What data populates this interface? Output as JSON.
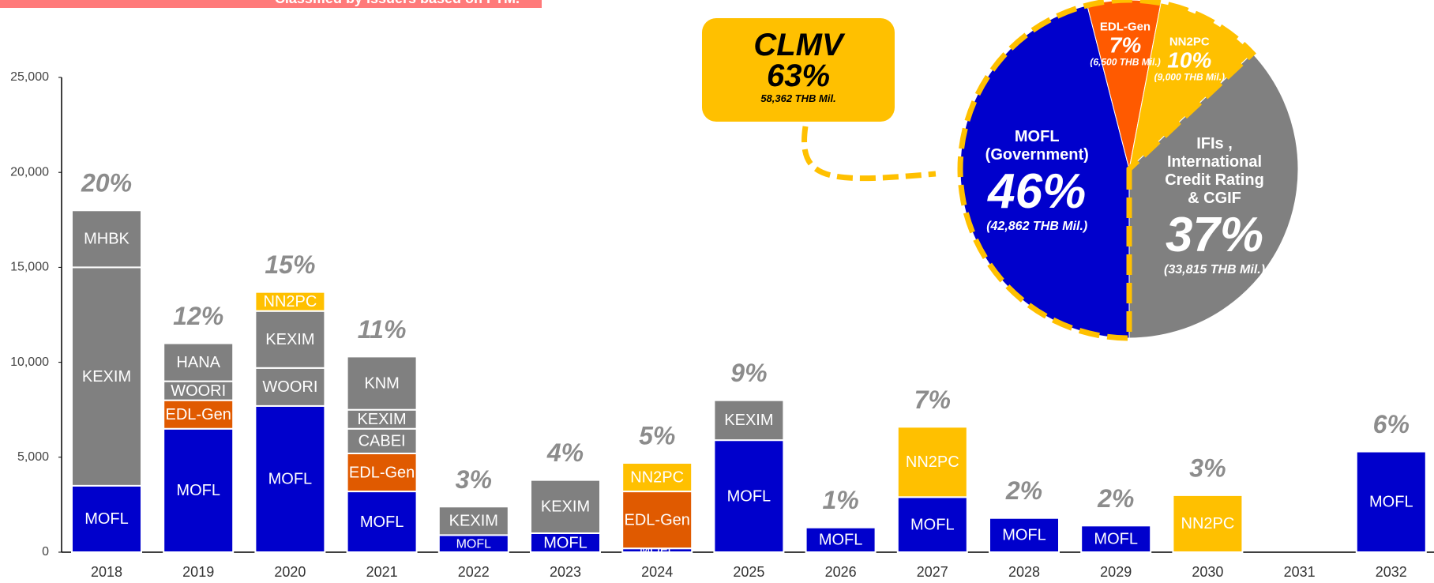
{
  "banner": "Classified by issuers based on FTM.",
  "chart_data": [
    {
      "type": "stacked_bar",
      "ylim": [
        0,
        25000
      ],
      "yticks": [
        0,
        {
          "value": 5000,
          "label": "5,000"
        },
        {
          "value": 10000,
          "label": "10,000"
        },
        {
          "value": 15000,
          "label": "15,000"
        },
        {
          "value": 20000,
          "label": "20,000"
        },
        {
          "value": 25000,
          "label": "25,000"
        }
      ],
      "bars": [
        {
          "category": "2018",
          "share_label": "20%",
          "segments": [
            {
              "name": "MOFL",
              "value": 3500,
              "color": "#0000cc"
            },
            {
              "name": "KEXIM",
              "value": 11500,
              "color": "#808080"
            },
            {
              "name": "MHBK",
              "value": 3000,
              "color": "#808080"
            }
          ]
        },
        {
          "category": "2019",
          "share_label": "12%",
          "segments": [
            {
              "name": "MOFL",
              "value": 6500,
              "color": "#0000cc"
            },
            {
              "name": "EDL-Gen",
              "value": 1500,
              "color": "#e05a00"
            },
            {
              "name": "WOORI",
              "value": 1000,
              "color": "#808080"
            },
            {
              "name": "HANA",
              "value": 2000,
              "color": "#808080"
            }
          ]
        },
        {
          "category": "2020",
          "share_label": "15%",
          "segments": [
            {
              "name": "MOFL",
              "value": 7700,
              "color": "#0000cc"
            },
            {
              "name": "WOORI",
              "value": 2000,
              "color": "#808080"
            },
            {
              "name": "KEXIM",
              "value": 3000,
              "color": "#808080"
            },
            {
              "name": "NN2PC",
              "value": 1000,
              "color": "#ffc000"
            }
          ]
        },
        {
          "category": "2021",
          "share_label": "11%",
          "segments": [
            {
              "name": "MOFL",
              "value": 3200,
              "color": "#0000cc"
            },
            {
              "name": "EDL-Gen",
              "value": 2000,
              "color": "#e05a00"
            },
            {
              "name": "CABEI",
              "value": 1300,
              "color": "#808080"
            },
            {
              "name": "KEXIM",
              "value": 1000,
              "color": "#808080"
            },
            {
              "name": "KNM",
              "value": 2800,
              "color": "#808080"
            }
          ]
        },
        {
          "category": "2022",
          "share_label": "3%",
          "segments": [
            {
              "name": "MOFL",
              "value": 900,
              "color": "#0000cc"
            },
            {
              "name": "KEXIM",
              "value": 1500,
              "color": "#808080"
            }
          ]
        },
        {
          "category": "2023",
          "share_label": "4%",
          "segments": [
            {
              "name": "MOFL",
              "value": 1000,
              "color": "#0000cc"
            },
            {
              "name": "KEXIM",
              "value": 2800,
              "color": "#808080"
            }
          ]
        },
        {
          "category": "2024",
          "share_label": "5%",
          "segments": [
            {
              "name": "MOFL",
              "value": 200,
              "color": "#0000cc"
            },
            {
              "name": "EDL-Gen",
              "value": 3000,
              "color": "#e05a00"
            },
            {
              "name": "NN2PC",
              "value": 1500,
              "color": "#ffc000"
            }
          ]
        },
        {
          "category": "2025",
          "share_label": "9%",
          "segments": [
            {
              "name": "MOFL",
              "value": 5900,
              "color": "#0000cc"
            },
            {
              "name": "KEXIM",
              "value": 2100,
              "color": "#808080"
            }
          ]
        },
        {
          "category": "2026",
          "share_label": "1%",
          "segments": [
            {
              "name": "MOFL",
              "value": 1300,
              "color": "#0000cc"
            }
          ]
        },
        {
          "category": "2027",
          "share_label": "7%",
          "segments": [
            {
              "name": "MOFL",
              "value": 2900,
              "color": "#0000cc"
            },
            {
              "name": "NN2PC",
              "value": 3700,
              "color": "#ffc000"
            }
          ]
        },
        {
          "category": "2028",
          "share_label": "2%",
          "segments": [
            {
              "name": "MOFL",
              "value": 1800,
              "color": "#0000cc"
            }
          ]
        },
        {
          "category": "2029",
          "share_label": "2%",
          "segments": [
            {
              "name": "MOFL",
              "value": 1400,
              "color": "#0000cc"
            }
          ]
        },
        {
          "category": "2030",
          "share_label": "3%",
          "segments": [
            {
              "name": "NN2PC",
              "value": 3000,
              "color": "#ffc000"
            }
          ]
        },
        {
          "category": "2031",
          "segments": []
        },
        {
          "category": "2032",
          "share_label": "6%",
          "segments": [
            {
              "name": "MOFL",
              "value": 5300,
              "color": "#0000cc"
            }
          ]
        }
      ]
    },
    {
      "type": "pie",
      "callout": {
        "title": "CLMV",
        "value": 63,
        "value_label": "63%",
        "amount": "58,362 THB Mil."
      },
      "slices": [
        {
          "name": "MOFL (Government)",
          "value": 46,
          "value_label": "46%",
          "amount": "(42,862 THB Mil.)",
          "color": "#0000cc"
        },
        {
          "name": "EDL-Gen",
          "value": 7,
          "value_label": "7%",
          "amount": "(6,500 THB Mil.)",
          "color": "#ff5a00"
        },
        {
          "name": "NN2PC",
          "value": 10,
          "value_label": "10%",
          "amount": "(9,000 THB Mil.)",
          "color": "#ffc000"
        },
        {
          "name": "IFIs , International Credit Rating & CGIF",
          "value": 37,
          "value_label": "37%",
          "amount": "(33,815 THB Mil.)",
          "color": "#808080"
        }
      ]
    }
  ]
}
